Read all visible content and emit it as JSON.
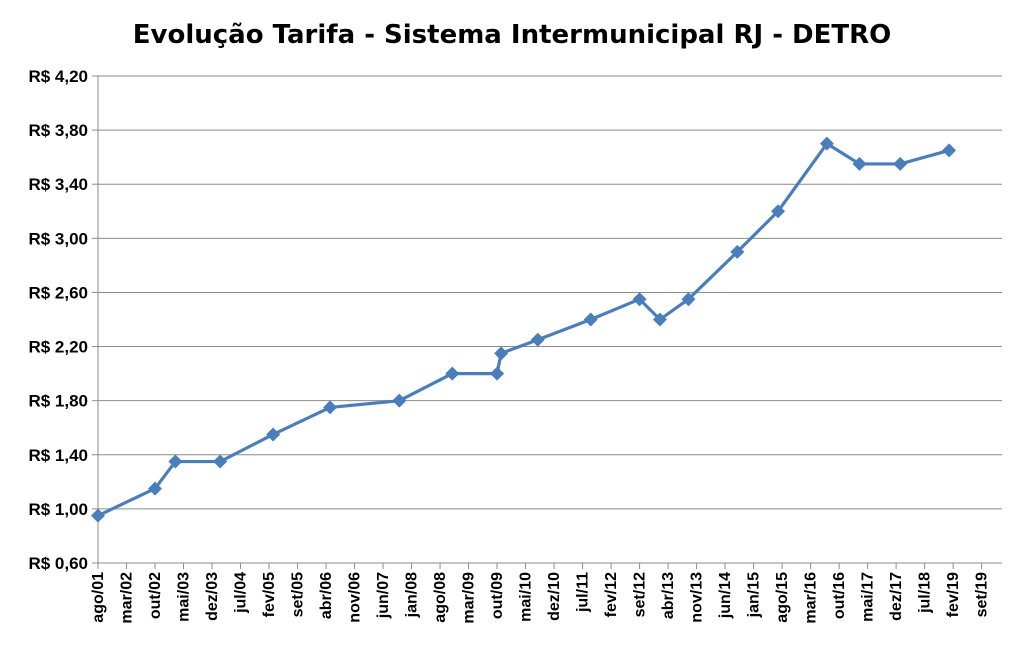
{
  "chart_data": {
    "type": "line",
    "title": "Evolução Tarifa - Sistema Intermunicipal RJ - DETRO",
    "xlabel": "",
    "ylabel": "",
    "ylim": [
      0.6,
      4.2
    ],
    "y_ticks": [
      0.6,
      1.0,
      1.4,
      1.8,
      2.2,
      2.6,
      3.0,
      3.4,
      3.8,
      4.2
    ],
    "y_tick_labels": [
      "R$ 0,60",
      "R$ 1,00",
      "R$ 1,40",
      "R$ 1,80",
      "R$ 2,20",
      "R$ 2,60",
      "R$ 3,00",
      "R$ 3,40",
      "R$ 3,80",
      "R$ 4,20"
    ],
    "x_tick_labels": [
      "ago/01",
      "mar/02",
      "out/02",
      "mai/03",
      "dez/03",
      "jul/04",
      "fev/05",
      "set/05",
      "abr/06",
      "nov/06",
      "jun/07",
      "jan/08",
      "ago/08",
      "mar/09",
      "out/09",
      "mai/10",
      "dez/10",
      "jul/11",
      "fev/12",
      "set/12",
      "abr/13",
      "nov/13",
      "jun/14",
      "jan/15",
      "ago/15",
      "mar/16",
      "out/16",
      "mai/17",
      "dez/17",
      "jul/18",
      "fev/19",
      "set/19"
    ],
    "grid": true,
    "legend": "none",
    "color": "#4a7ebb",
    "series": [
      {
        "x": [
          "2001-08",
          "2002-10",
          "2003-03",
          "2004-02",
          "2005-03",
          "2006-05",
          "2007-10",
          "2008-11",
          "2009-10",
          "2009-11",
          "2010-08",
          "2011-09",
          "2012-09",
          "2013-02",
          "2013-09",
          "2014-09",
          "2015-07",
          "2016-07",
          "2017-03",
          "2018-01",
          "2019-01"
        ],
        "values": [
          0.95,
          1.15,
          1.35,
          1.35,
          1.55,
          1.75,
          1.8,
          2.0,
          2.0,
          2.15,
          2.25,
          2.4,
          2.55,
          2.4,
          2.55,
          2.9,
          3.2,
          3.7,
          3.55,
          3.55,
          3.65
        ]
      }
    ]
  }
}
